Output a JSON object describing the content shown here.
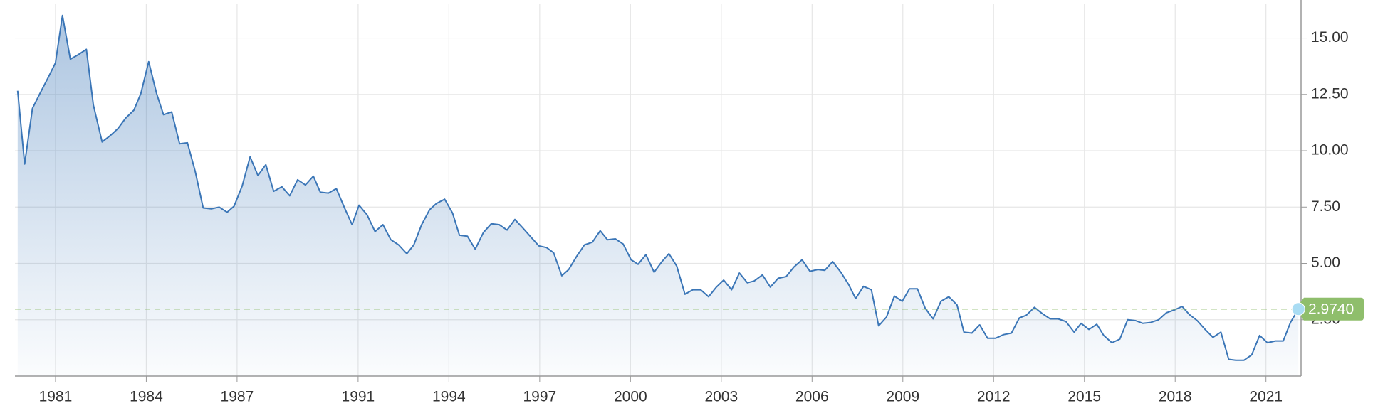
{
  "chart_data": {
    "type": "area",
    "x": [
      1979.75,
      1979.98,
      1980.24,
      1980.47,
      1980.74,
      1981.0,
      1981.23,
      1981.49,
      1981.75,
      1982.02,
      1982.25,
      1982.54,
      1982.8,
      1983.06,
      1983.32,
      1983.59,
      1983.82,
      1984.08,
      1984.34,
      1984.57,
      1984.84,
      1985.1,
      1985.36,
      1985.62,
      1985.88,
      1986.15,
      1986.41,
      1986.67,
      1986.9,
      1987.17,
      1987.43,
      1987.69,
      1987.95,
      1988.21,
      1988.48,
      1988.74,
      1989.0,
      1989.26,
      1989.52,
      1989.75,
      1990.02,
      1990.28,
      1990.54,
      1990.8,
      1991.03,
      1991.3,
      1991.56,
      1991.82,
      1992.08,
      1992.34,
      1992.61,
      1992.84,
      1993.1,
      1993.36,
      1993.59,
      1993.86,
      1994.12,
      1994.35,
      1994.61,
      1994.87,
      1995.14,
      1995.4,
      1995.66,
      1995.92,
      1996.18,
      1996.45,
      1996.71,
      1996.97,
      1997.23,
      1997.46,
      1997.73,
      1997.96,
      1998.22,
      1998.48,
      1998.74,
      1999.0,
      1999.24,
      1999.5,
      1999.76,
      2000.02,
      2000.25,
      2000.51,
      2000.78,
      2001.04,
      2001.27,
      2001.53,
      2001.8,
      2002.06,
      2002.32,
      2002.58,
      2002.84,
      2003.08,
      2003.34,
      2003.6,
      2003.86,
      2004.09,
      2004.36,
      2004.62,
      2004.88,
      2005.14,
      2005.4,
      2005.67,
      2005.93,
      2006.19,
      2006.42,
      2006.68,
      2006.95,
      2007.21,
      2007.44,
      2007.7,
      2007.96,
      2008.2,
      2008.46,
      2008.72,
      2008.98,
      2009.22,
      2009.48,
      2009.74,
      2010.0,
      2010.26,
      2010.52,
      2010.79,
      2011.02,
      2011.28,
      2011.54,
      2011.8,
      2012.07,
      2012.33,
      2012.59,
      2012.85,
      2013.08,
      2013.35,
      2013.61,
      2013.87,
      2014.13,
      2014.39,
      2014.66,
      2014.89,
      2015.15,
      2015.41,
      2015.64,
      2015.91,
      2016.17,
      2016.43,
      2016.69,
      2016.93,
      2017.19,
      2017.45,
      2017.71,
      2017.97,
      2018.23,
      2018.47,
      2018.73,
      2018.99,
      2019.25,
      2019.51,
      2019.77,
      2020.0,
      2020.27,
      2020.53,
      2020.79,
      2021.05,
      2021.31,
      2021.57,
      2021.81,
      2022.07
    ],
    "series": [
      {
        "color": "#3b76b7",
        "values": [
          12.66,
          9.41,
          11.88,
          12.5,
          13.2,
          13.9,
          16.0,
          14.06,
          14.26,
          14.5,
          12.03,
          10.39,
          10.66,
          10.98,
          11.45,
          11.8,
          12.54,
          13.95,
          12.54,
          11.6,
          11.72,
          10.31,
          10.35,
          9.06,
          7.46,
          7.42,
          7.5,
          7.27,
          7.54,
          8.44,
          9.73,
          8.9,
          9.38,
          8.2,
          8.4,
          8.0,
          8.71,
          8.48,
          8.87,
          8.16,
          8.12,
          8.32,
          7.5,
          6.72,
          7.58,
          7.15,
          6.41,
          6.72,
          6.05,
          5.82,
          5.43,
          5.82,
          6.72,
          7.38,
          7.66,
          7.85,
          7.23,
          6.25,
          6.21,
          5.63,
          6.37,
          6.76,
          6.72,
          6.48,
          6.95,
          6.56,
          6.17,
          5.78,
          5.7,
          5.47,
          4.45,
          4.73,
          5.31,
          5.82,
          5.94,
          6.45,
          6.05,
          6.09,
          5.86,
          5.16,
          4.96,
          5.39,
          4.61,
          5.08,
          5.43,
          4.88,
          3.63,
          3.83,
          3.83,
          3.52,
          3.95,
          4.26,
          3.83,
          4.57,
          4.14,
          4.22,
          4.49,
          3.95,
          4.34,
          4.41,
          4.84,
          5.16,
          4.65,
          4.73,
          4.69,
          5.08,
          4.61,
          4.06,
          3.44,
          3.98,
          3.83,
          2.23,
          2.62,
          3.55,
          3.32,
          3.87,
          3.87,
          3.01,
          2.54,
          3.32,
          3.52,
          3.16,
          1.95,
          1.91,
          2.27,
          1.68,
          1.68,
          1.84,
          1.91,
          2.58,
          2.7,
          3.05,
          2.77,
          2.54,
          2.54,
          2.42,
          1.95,
          2.34,
          2.07,
          2.3,
          1.8,
          1.48,
          1.64,
          2.5,
          2.46,
          2.34,
          2.38,
          2.5,
          2.81,
          2.93,
          3.09,
          2.73,
          2.46,
          2.07,
          1.72,
          1.95,
          0.74,
          0.7,
          0.7,
          0.94,
          1.8,
          1.48,
          1.56,
          1.56,
          2.38,
          2.974
        ]
      }
    ],
    "xlim": [
      1979.66,
      2022.16
    ],
    "xticks": [
      1981,
      1984,
      1987,
      1991,
      1994,
      1997,
      2000,
      2003,
      2006,
      2009,
      2012,
      2015,
      2018,
      2021
    ],
    "ylim": [
      0,
      16.5
    ],
    "yticks": [
      {
        "value": 2.5,
        "label": "2.50"
      },
      {
        "value": 5,
        "label": "5.00"
      },
      {
        "value": 7.5,
        "label": "7.50"
      },
      {
        "value": 10,
        "label": "10.00"
      },
      {
        "value": 12.5,
        "label": "12.50"
      },
      {
        "value": 15,
        "label": "15.00"
      }
    ],
    "reference_line": {
      "value": 2.974,
      "label": "2.9740",
      "color": "#8fbe6c"
    },
    "grid": true
  }
}
